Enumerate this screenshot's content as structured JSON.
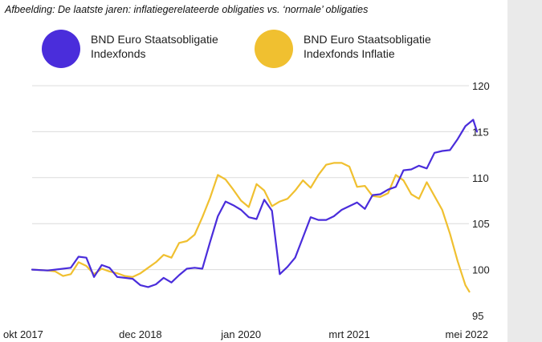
{
  "caption": "Afbeelding: De laatste jaren: inflatiegerelateerde obligaties vs. ‘normale’ obligaties",
  "legend": [
    {
      "line1": "BND Euro Staatsobligatie",
      "line2": "Indexfonds",
      "color": "#4a2ddb"
    },
    {
      "line1": "BND Euro Staatsobligatie",
      "line2": "Indexfonds Inflatie",
      "color": "#f0c030"
    }
  ],
  "chart_data": {
    "type": "line",
    "title": "",
    "xlabel": "",
    "ylabel": "",
    "ylim": [
      95,
      120
    ],
    "yticks": [
      95,
      100,
      105,
      110,
      115,
      120
    ],
    "xlim": [
      0,
      55
    ],
    "xticks": [
      {
        "pos": 0,
        "label": "okt 2017"
      },
      {
        "pos": 14,
        "label": "dec 2018"
      },
      {
        "pos": 27,
        "label": "jan 2020"
      },
      {
        "pos": 41,
        "label": "mrt 2021"
      },
      {
        "pos": 55,
        "label": "mei 2022"
      }
    ],
    "grid": "horizontal",
    "series": [
      {
        "name": "BND Euro Staatsobligatie Indexfonds",
        "color": "#4a2ddb",
        "points": [
          [
            0,
            100
          ],
          [
            2,
            99.9
          ],
          [
            3,
            100
          ],
          [
            5,
            100.2
          ],
          [
            6,
            101.4
          ],
          [
            7,
            101.3
          ],
          [
            8,
            99.2
          ],
          [
            9,
            100.5
          ],
          [
            10,
            100.2
          ],
          [
            11,
            99.2
          ],
          [
            12,
            99.1
          ],
          [
            13,
            99.0
          ],
          [
            14,
            98.3
          ],
          [
            15,
            98.1
          ],
          [
            16,
            98.4
          ],
          [
            17,
            99.1
          ],
          [
            18,
            98.6
          ],
          [
            19,
            99.4
          ],
          [
            20,
            100.1
          ],
          [
            21,
            100.2
          ],
          [
            22,
            100.1
          ],
          [
            23,
            103.0
          ],
          [
            24,
            105.8
          ],
          [
            25,
            107.4
          ],
          [
            26,
            107.0
          ],
          [
            27,
            106.5
          ],
          [
            28,
            105.7
          ],
          [
            29,
            105.5
          ],
          [
            30,
            107.6
          ],
          [
            31,
            106.4
          ],
          [
            32,
            99.5
          ],
          [
            33,
            100.3
          ],
          [
            34,
            101.3
          ],
          [
            35,
            103.5
          ],
          [
            36,
            105.7
          ],
          [
            37,
            105.4
          ],
          [
            38,
            105.4
          ],
          [
            39,
            105.8
          ],
          [
            40,
            106.5
          ],
          [
            41,
            106.9
          ],
          [
            42,
            107.3
          ],
          [
            43,
            106.6
          ],
          [
            44,
            108.1
          ],
          [
            45,
            108.2
          ],
          [
            46,
            108.7
          ],
          [
            47,
            109.0
          ],
          [
            48,
            110.8
          ],
          [
            49,
            110.9
          ],
          [
            50,
            111.3
          ],
          [
            51,
            111.0
          ],
          [
            52,
            112.7
          ],
          [
            53,
            112.9
          ],
          [
            54,
            113.0
          ],
          [
            55,
            114.2
          ],
          [
            56,
            115.6
          ],
          [
            57,
            116.3
          ],
          [
            57.5,
            115.0
          ]
        ]
      },
      {
        "name": "BND Euro Staatsobligatie Indexfonds Inflatie",
        "color": "#f0c030",
        "points": [
          [
            0,
            100
          ],
          [
            2,
            99.9
          ],
          [
            3,
            99.8
          ],
          [
            4,
            99.3
          ],
          [
            5,
            99.5
          ],
          [
            6,
            100.8
          ],
          [
            7,
            100.4
          ],
          [
            8,
            99.5
          ],
          [
            9,
            100.1
          ],
          [
            10,
            99.8
          ],
          [
            11,
            99.6
          ],
          [
            12,
            99.3
          ],
          [
            13,
            99.2
          ],
          [
            14,
            99.6
          ],
          [
            15,
            100.2
          ],
          [
            16,
            100.8
          ],
          [
            17,
            101.6
          ],
          [
            18,
            101.3
          ],
          [
            19,
            102.9
          ],
          [
            20,
            103.1
          ],
          [
            21,
            103.8
          ],
          [
            22,
            105.7
          ],
          [
            23,
            107.8
          ],
          [
            24,
            110.3
          ],
          [
            25,
            109.8
          ],
          [
            26,
            108.7
          ],
          [
            27,
            107.5
          ],
          [
            28,
            106.8
          ],
          [
            29,
            109.3
          ],
          [
            30,
            108.6
          ],
          [
            31,
            106.9
          ],
          [
            32,
            107.4
          ],
          [
            33,
            107.7
          ],
          [
            34,
            108.6
          ],
          [
            35,
            109.7
          ],
          [
            36,
            108.9
          ],
          [
            37,
            110.3
          ],
          [
            38,
            111.4
          ],
          [
            39,
            111.6
          ],
          [
            40,
            111.6
          ],
          [
            41,
            111.2
          ],
          [
            42,
            109.0
          ],
          [
            43,
            109.1
          ],
          [
            44,
            108.0
          ],
          [
            45,
            107.9
          ],
          [
            46,
            108.3
          ],
          [
            47,
            110.3
          ],
          [
            48,
            109.7
          ],
          [
            49,
            108.2
          ],
          [
            50,
            107.7
          ],
          [
            51,
            109.5
          ],
          [
            52,
            108.0
          ],
          [
            53,
            106.5
          ],
          [
            54,
            103.9
          ],
          [
            55,
            100.9
          ],
          [
            56,
            98.3
          ],
          [
            56.5,
            97.6
          ]
        ]
      }
    ]
  }
}
